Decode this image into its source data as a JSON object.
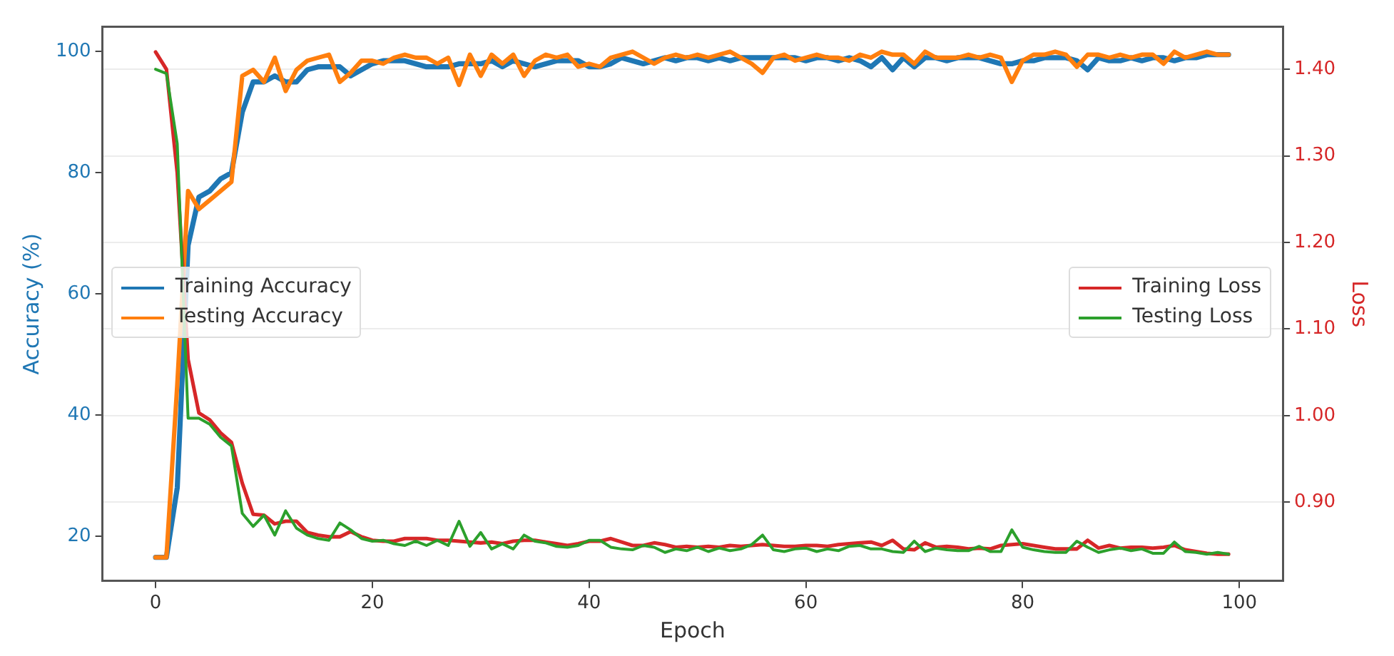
{
  "chart_data": {
    "type": "line",
    "xlabel": "Epoch",
    "ylabel": "Accuracy (%)",
    "y2label": "Loss",
    "x": [
      0,
      1,
      2,
      3,
      4,
      5,
      6,
      7,
      8,
      9,
      10,
      11,
      12,
      13,
      14,
      15,
      16,
      17,
      18,
      19,
      20,
      21,
      22,
      23,
      24,
      25,
      26,
      27,
      28,
      29,
      30,
      31,
      32,
      33,
      34,
      35,
      36,
      37,
      38,
      39,
      40,
      41,
      42,
      43,
      44,
      45,
      46,
      47,
      48,
      49,
      50,
      51,
      52,
      53,
      54,
      55,
      56,
      57,
      58,
      59,
      60,
      61,
      62,
      63,
      64,
      65,
      66,
      67,
      68,
      69,
      70,
      71,
      72,
      73,
      74,
      75,
      76,
      77,
      78,
      79,
      80,
      81,
      82,
      83,
      84,
      85,
      86,
      87,
      88,
      89,
      90,
      91,
      92,
      93,
      94,
      95,
      96,
      97,
      98,
      99
    ],
    "series": [
      {
        "name": "Training Accuracy",
        "color": "#1f77b4",
        "values": [
          16.5,
          16.5,
          28,
          68,
          76,
          77,
          79,
          80,
          90,
          95,
          95,
          96,
          95,
          95,
          97,
          97.5,
          97.5,
          97.5,
          96,
          97,
          98,
          98.5,
          98.5,
          98.5,
          98,
          97.5,
          97.5,
          97.5,
          98,
          98,
          98,
          98.5,
          97.5,
          98.5,
          98,
          97.5,
          98,
          98.5,
          98.5,
          98.5,
          97.5,
          97.5,
          98,
          99,
          98.5,
          98,
          98.5,
          99,
          98.5,
          99,
          99,
          98.5,
          99,
          98.5,
          99,
          99,
          99,
          99,
          99,
          99,
          98.5,
          99,
          99,
          98.5,
          99,
          98.5,
          97.5,
          99,
          97,
          99,
          97.5,
          99,
          99,
          98.5,
          99,
          99,
          99,
          98.5,
          98,
          98,
          98.5,
          98.5,
          99,
          99,
          99,
          98.5,
          97,
          99,
          98.5,
          98.5,
          99,
          98.5,
          99,
          99,
          98.5,
          99,
          99,
          99.5,
          99.5,
          99.5
        ]
      },
      {
        "name": "Testing Accuracy",
        "color": "#ff7f0e",
        "values": [
          16.5,
          16.5,
          45,
          77,
          74,
          75.5,
          77,
          78.5,
          96,
          97,
          95,
          99,
          93.5,
          97,
          98.5,
          99,
          99.5,
          95,
          96.5,
          98.5,
          98.5,
          98,
          99,
          99.5,
          99,
          99,
          98,
          99,
          94.5,
          99.5,
          96,
          99.5,
          98,
          99.5,
          96,
          98.5,
          99.5,
          99,
          99.5,
          97.5,
          98,
          97.5,
          99,
          99.5,
          100,
          99,
          98,
          99,
          99.5,
          99,
          99.5,
          99,
          99.5,
          100,
          99,
          98,
          96.5,
          99,
          99.5,
          98.5,
          99,
          99.5,
          99,
          99,
          98.5,
          99.5,
          99,
          100,
          99.5,
          99.5,
          98,
          100,
          99,
          99,
          99,
          99.5,
          99,
          99.5,
          99,
          95,
          98.5,
          99.5,
          99.5,
          100,
          99.5,
          97.5,
          99.5,
          99.5,
          99,
          99.5,
          99,
          99.5,
          99.5,
          98,
          100,
          99,
          99.5,
          100,
          99.5,
          99.5
        ]
      },
      {
        "name": "Training Loss",
        "color": "#d62728",
        "axis": "y2",
        "values": [
          1.42,
          1.4,
          1.28,
          1.065,
          1.003,
          0.995,
          0.98,
          0.969,
          0.922,
          0.886,
          0.885,
          0.875,
          0.878,
          0.878,
          0.865,
          0.862,
          0.86,
          0.86,
          0.866,
          0.86,
          0.856,
          0.855,
          0.855,
          0.858,
          0.858,
          0.858,
          0.856,
          0.856,
          0.855,
          0.854,
          0.853,
          0.854,
          0.852,
          0.855,
          0.856,
          0.856,
          0.854,
          0.852,
          0.85,
          0.852,
          0.855,
          0.855,
          0.858,
          0.854,
          0.85,
          0.85,
          0.853,
          0.851,
          0.848,
          0.849,
          0.848,
          0.849,
          0.848,
          0.85,
          0.849,
          0.85,
          0.851,
          0.85,
          0.849,
          0.849,
          0.85,
          0.85,
          0.849,
          0.851,
          0.852,
          0.853,
          0.854,
          0.85,
          0.856,
          0.846,
          0.845,
          0.853,
          0.848,
          0.849,
          0.848,
          0.846,
          0.847,
          0.846,
          0.85,
          0.851,
          0.852,
          0.85,
          0.848,
          0.846,
          0.846,
          0.846,
          0.856,
          0.847,
          0.85,
          0.847,
          0.848,
          0.848,
          0.847,
          0.848,
          0.85,
          0.845,
          0.843,
          0.841,
          0.84,
          0.84
        ]
      },
      {
        "name": "Testing Loss",
        "color": "#2ca02c",
        "axis": "y2",
        "values": [
          1.4,
          1.395,
          1.314,
          0.997,
          0.997,
          0.99,
          0.975,
          0.965,
          0.887,
          0.872,
          0.885,
          0.862,
          0.89,
          0.87,
          0.862,
          0.858,
          0.856,
          0.876,
          0.868,
          0.858,
          0.855,
          0.856,
          0.852,
          0.85,
          0.855,
          0.85,
          0.856,
          0.85,
          0.878,
          0.849,
          0.865,
          0.846,
          0.852,
          0.846,
          0.862,
          0.855,
          0.853,
          0.849,
          0.848,
          0.85,
          0.856,
          0.856,
          0.848,
          0.846,
          0.845,
          0.85,
          0.848,
          0.842,
          0.846,
          0.844,
          0.848,
          0.843,
          0.847,
          0.844,
          0.846,
          0.851,
          0.862,
          0.845,
          0.843,
          0.846,
          0.847,
          0.843,
          0.846,
          0.844,
          0.849,
          0.85,
          0.846,
          0.846,
          0.843,
          0.842,
          0.855,
          0.843,
          0.847,
          0.845,
          0.844,
          0.844,
          0.849,
          0.843,
          0.843,
          0.868,
          0.848,
          0.845,
          0.843,
          0.842,
          0.842,
          0.855,
          0.848,
          0.842,
          0.845,
          0.847,
          0.844,
          0.846,
          0.841,
          0.841,
          0.854,
          0.843,
          0.842,
          0.84,
          0.842,
          0.84
        ]
      }
    ],
    "xlim": [
      -4.9,
      104
    ],
    "xticks": [
      0,
      20,
      40,
      60,
      80,
      100
    ],
    "ylim": [
      12.6,
      104.1
    ],
    "yticks": [
      20,
      40,
      60,
      80,
      100
    ],
    "y2lim": [
      0.809,
      1.449
    ],
    "y2ticks": [
      {
        "value": 0.9,
        "label": "0.90"
      },
      {
        "value": 1.0,
        "label": "1.00"
      },
      {
        "value": 1.1,
        "label": "1.10"
      },
      {
        "value": 1.2,
        "label": "1.20"
      },
      {
        "value": 1.3,
        "label": "1.30"
      },
      {
        "value": 1.4,
        "label": "1.40"
      }
    ],
    "grid": "y2",
    "legend": [
      "left",
      "right"
    ],
    "line_style": "solid",
    "marker": "none"
  }
}
